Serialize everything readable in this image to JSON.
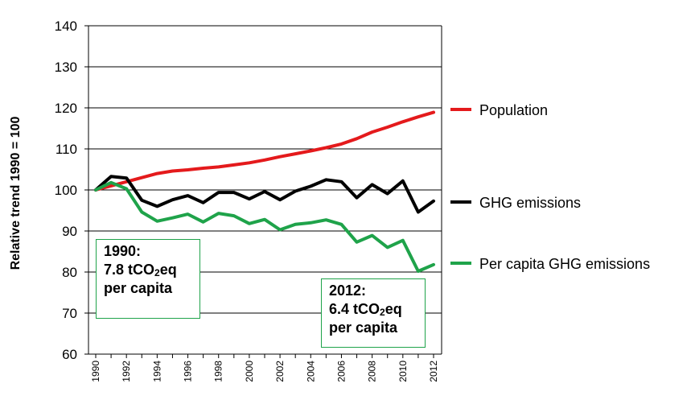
{
  "chart_data": {
    "type": "line",
    "title": "",
    "ylabel": "Relative trend  1990 = 100",
    "xlabel": "",
    "ylim": [
      60,
      140
    ],
    "yticks": [
      "60",
      "70",
      "80",
      "90",
      "100",
      "110",
      "120",
      "130",
      "140"
    ],
    "xlim": [
      1990,
      2012
    ],
    "xtick_labels": [
      "1990",
      "1992",
      "1994",
      "1996",
      "1998",
      "2000",
      "2002",
      "2004",
      "2006",
      "2008",
      "2010",
      "2012"
    ],
    "grid": "horizontal",
    "legend_placement": "right",
    "x": [
      1990,
      1991,
      1992,
      1993,
      1994,
      1995,
      1996,
      1997,
      1998,
      1999,
      2000,
      2001,
      2002,
      2003,
      2004,
      2005,
      2006,
      2007,
      2008,
      2009,
      2010,
      2011,
      2012
    ],
    "series": [
      {
        "name": "Population",
        "color": "#e41a1c",
        "values": [
          100,
          101,
          102,
          103,
          104,
          104.6,
          104.9,
          105.3,
          105.6,
          106.1,
          106.6,
          107.3,
          108.1,
          108.8,
          109.5,
          110.3,
          111.2,
          112.5,
          114.1,
          115.3,
          116.6,
          117.8,
          118.9
        ]
      },
      {
        "name": "GHG  emissions",
        "color": "#000000",
        "values": [
          100,
          103.3,
          102.9,
          97.5,
          96,
          97.6,
          98.6,
          96.9,
          99.4,
          99.4,
          97.8,
          99.6,
          97.6,
          99.7,
          100.9,
          102.5,
          102,
          98.1,
          101.3,
          99.1,
          102.2,
          94.6,
          97.3
        ]
      },
      {
        "name": "Per capita GHG  emissions",
        "color": "#1fa34a",
        "values": [
          100,
          101.8,
          100.3,
          94.6,
          92.4,
          93.2,
          94.1,
          92.2,
          94.3,
          93.7,
          91.8,
          92.8,
          90.3,
          91.6,
          92,
          92.7,
          91.6,
          87.3,
          88.9,
          86,
          87.7,
          80.2,
          81.8
        ]
      }
    ],
    "annotations": [
      {
        "year": "1990:",
        "value": "7.8 tCO",
        "sub": "2",
        "unit": "eq",
        "tail": "per capita",
        "border_color": "#1fa34a"
      },
      {
        "year": "2012:",
        "value": "6.4 tCO",
        "sub": "2",
        "unit": "eq",
        "tail": "per capita",
        "border_color": "#1fa34a"
      }
    ]
  }
}
